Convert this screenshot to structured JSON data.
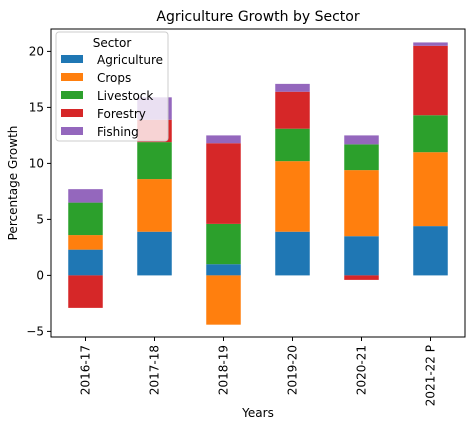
{
  "chart_data": {
    "type": "bar",
    "stacked": true,
    "title": "Agriculture Growth by Sector",
    "xlabel": "Years",
    "ylabel": "Percentage Growth",
    "categories": [
      "2016-17",
      "2017-18",
      "2018-19",
      "2019-20",
      "2020-21",
      "2021-22 P"
    ],
    "ylim": [
      -5.5,
      22.0
    ],
    "yticks": [
      -5,
      0,
      5,
      10,
      15,
      20
    ],
    "grid": false,
    "legend": {
      "title": "Sector",
      "placement": "upper-left"
    },
    "series": [
      {
        "name": "Agriculture",
        "color": "#1f77b4",
        "values": [
          2.3,
          3.9,
          1.0,
          3.9,
          3.5,
          4.4
        ]
      },
      {
        "name": "Crops",
        "color": "#ff7f0e",
        "values": [
          1.3,
          4.7,
          -4.4,
          6.3,
          5.9,
          6.6
        ]
      },
      {
        "name": "Livestock",
        "color": "#2ca02c",
        "values": [
          2.9,
          3.3,
          3.6,
          2.9,
          2.3,
          3.3
        ]
      },
      {
        "name": "Forestry",
        "color": "#d62728",
        "values": [
          -2.9,
          2.0,
          7.2,
          3.3,
          -0.4,
          6.2
        ]
      },
      {
        "name": "Fishing",
        "color": "#9467bd",
        "values": [
          1.2,
          2.0,
          0.7,
          0.7,
          0.8,
          0.3
        ]
      }
    ]
  }
}
